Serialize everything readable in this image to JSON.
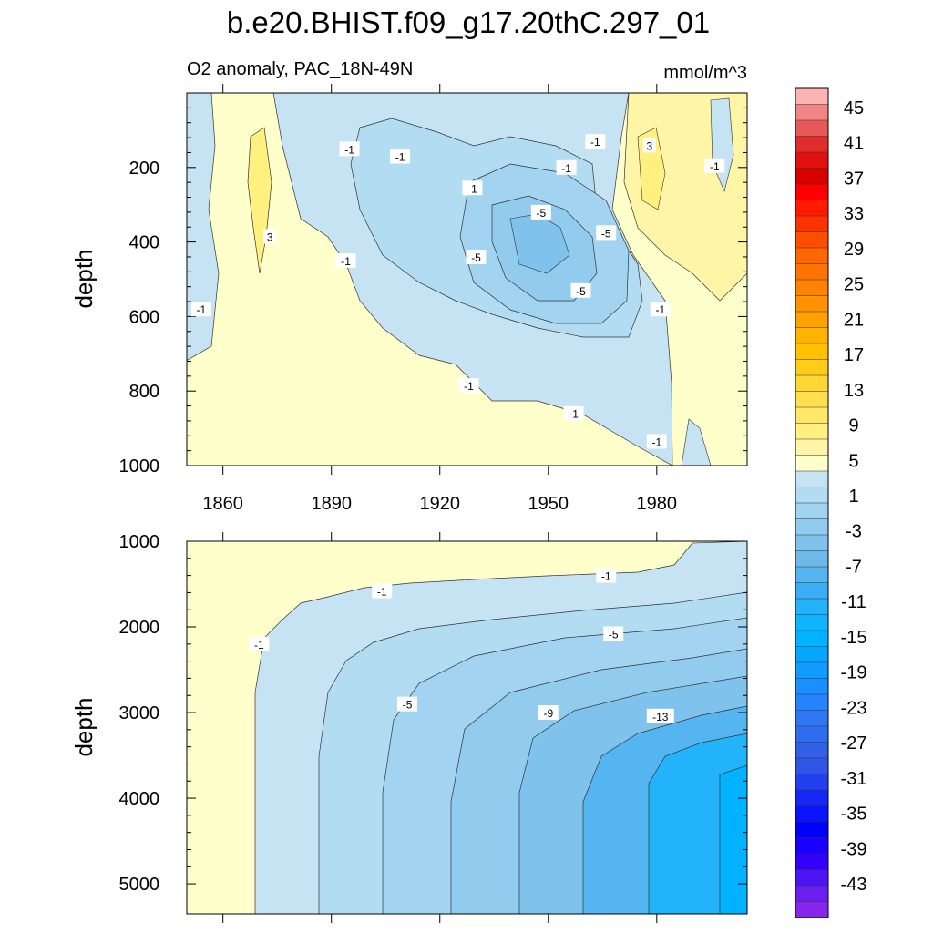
{
  "chart_data": {
    "type": "heatmap",
    "title": "b.e20.BHIST.f09_g17.20thC.297_01",
    "subtitle": "O2 anomaly, PAC_18N-49N",
    "units": "mmol/m^3",
    "xaxis": {
      "range": [
        1850,
        2005
      ],
      "tick_labels": [
        "1860",
        "1890",
        "1920",
        "1950",
        "1980"
      ],
      "ticks": [
        1860,
        1890,
        1920,
        1950,
        1980
      ]
    },
    "panels": [
      {
        "name": "upper-ocean",
        "ylabel": "depth",
        "ylim": [
          0,
          1000
        ],
        "y_tick_labels": [
          "200",
          "400",
          "600",
          "800",
          "1000"
        ],
        "y_ticks": [
          200,
          400,
          600,
          800,
          1000
        ],
        "contour_labels": [
          {
            "text": "-1",
            "x": 1895,
            "y": 150
          },
          {
            "text": "-1",
            "x": 1909,
            "y": 170
          },
          {
            "text": "-1",
            "x": 1955,
            "y": 200
          },
          {
            "text": "-1",
            "x": 1963,
            "y": 130
          },
          {
            "text": "3",
            "x": 1978,
            "y": 140
          },
          {
            "text": "-1",
            "x": 1996,
            "y": 195
          },
          {
            "text": "-1",
            "x": 1929,
            "y": 255
          },
          {
            "text": "-5",
            "x": 1948,
            "y": 320
          },
          {
            "text": "3",
            "x": 1873,
            "y": 385
          },
          {
            "text": "-5",
            "x": 1966,
            "y": 375
          },
          {
            "text": "-5",
            "x": 1930,
            "y": 440
          },
          {
            "text": "-1",
            "x": 1894,
            "y": 450
          },
          {
            "text": "-5",
            "x": 1959,
            "y": 530
          },
          {
            "text": "-1",
            "x": 1854,
            "y": 580
          },
          {
            "text": "-1",
            "x": 1981,
            "y": 580
          },
          {
            "text": "-1",
            "x": 1928,
            "y": 785
          },
          {
            "text": "-1",
            "x": 1957,
            "y": 860
          },
          {
            "text": "-1",
            "x": 1980,
            "y": 935
          }
        ]
      },
      {
        "name": "deep-ocean",
        "ylabel": "depth",
        "ylim": [
          1000,
          5350
        ],
        "y_tick_labels": [
          "1000",
          "2000",
          "3000",
          "4000",
          "5000"
        ],
        "y_ticks": [
          1000,
          2000,
          3000,
          4000,
          5000
        ],
        "contour_labels": [
          {
            "text": "-1",
            "x": 1904,
            "y": 1580
          },
          {
            "text": "-1",
            "x": 1966,
            "y": 1400
          },
          {
            "text": "-5",
            "x": 1968,
            "y": 2080
          },
          {
            "text": "-1",
            "x": 1870,
            "y": 2200
          },
          {
            "text": "-5",
            "x": 1911,
            "y": 2900
          },
          {
            "text": "-9",
            "x": 1950,
            "y": 3000
          },
          {
            "text": "-13",
            "x": 1981,
            "y": 3040
          }
        ]
      }
    ],
    "colorbar": {
      "labels": [
        "45",
        "41",
        "37",
        "33",
        "29",
        "25",
        "21",
        "17",
        "13",
        "9",
        "5",
        "1",
        "-3",
        "-7",
        "-11",
        "-15",
        "-19",
        "-23",
        "-27",
        "-31",
        "-35",
        "-39",
        "-43"
      ],
      "colors": [
        "#fbb3b3",
        "#f18585",
        "#e75858",
        "#e22b2b",
        "#e21111",
        "#d90000",
        "#ff0000",
        "#ff1a00",
        "#ff3300",
        "#ff4d00",
        "#ff6600",
        "#ff7300",
        "#ff8200",
        "#ff9200",
        "#ffa200",
        "#ffb300",
        "#ffc000",
        "#ffcc1a",
        "#ffd633",
        "#ffdf4d",
        "#ffe866",
        "#fff080",
        "#fff5a6",
        "#ffffcc",
        "#c6e3f4",
        "#b2dcf2",
        "#a2d3f0",
        "#91cbee",
        "#7fc3ec",
        "#6dbaea",
        "#55b5f0",
        "#3aadf5",
        "#22b3fb",
        "#0fb4fd",
        "#00b2ff",
        "#06a6ff",
        "#0f9bff",
        "#1a8fff",
        "#2583ff",
        "#2f77f5",
        "#2f6cf0",
        "#3060e8",
        "#2f55e6",
        "#243ff0",
        "#1727f5",
        "#0a14fa",
        "#0000ff",
        "#1a00ff",
        "#3300ff",
        "#4d14f5",
        "#6a1ff0",
        "#8526eb"
      ]
    }
  }
}
